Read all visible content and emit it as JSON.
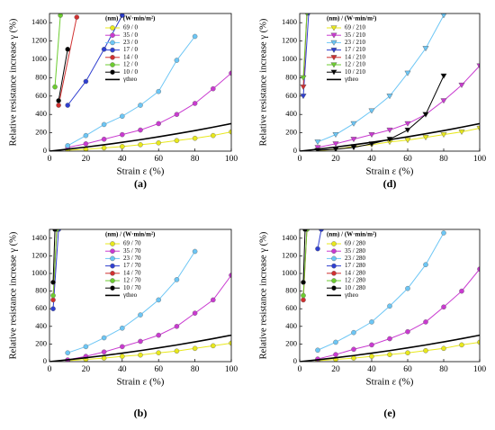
{
  "chart_data": [
    {
      "type": "line",
      "title": "(a)",
      "xlabel": "Strain ε (%)",
      "ylabel": "Relative resistance increase γ (%)",
      "legend_title": "(nm) / (W·min/m²)",
      "marker": "circle",
      "xlim": [
        0,
        100
      ],
      "ylim": [
        0,
        1500
      ],
      "xticks": [
        0,
        20,
        40,
        60,
        80,
        100
      ],
      "yticks": [
        0,
        200,
        400,
        600,
        800,
        1000,
        1200,
        1400
      ],
      "series": [
        {
          "name": "69 / 0",
          "color": "#e8e81c",
          "x": [
            10,
            20,
            30,
            40,
            50,
            60,
            70,
            80,
            90,
            100
          ],
          "values": [
            10,
            20,
            35,
            50,
            70,
            90,
            115,
            140,
            170,
            210
          ]
        },
        {
          "name": "35 / 0",
          "color": "#c93ad0",
          "x": [
            10,
            20,
            30,
            40,
            50,
            60,
            70,
            80,
            90,
            100
          ],
          "values": [
            40,
            80,
            130,
            180,
            230,
            300,
            400,
            520,
            680,
            850
          ]
        },
        {
          "name": "23 / 0",
          "color": "#6cc6f5",
          "x": [
            10,
            20,
            30,
            40,
            50,
            60,
            70,
            80
          ],
          "values": [
            60,
            170,
            290,
            380,
            500,
            650,
            990,
            1250
          ]
        },
        {
          "name": "17 / 0",
          "color": "#2f3fd0",
          "x": [
            10,
            20,
            30,
            40
          ],
          "values": [
            500,
            760,
            1110,
            1480
          ]
        },
        {
          "name": "14 / 0",
          "color": "#d03030",
          "x": [
            5,
            15
          ],
          "values": [
            500,
            1460
          ]
        },
        {
          "name": "12 / 0",
          "color": "#6ccc30",
          "x": [
            3,
            6
          ],
          "values": [
            700,
            1480
          ]
        },
        {
          "name": "10 / 0",
          "color": "#000000",
          "x": [
            5,
            10
          ],
          "values": [
            550,
            1110
          ]
        },
        {
          "name": "γtheo",
          "color": "#000000",
          "line_only": true,
          "x": [
            0,
            10,
            20,
            30,
            40,
            50,
            60,
            70,
            80,
            90,
            100
          ],
          "values": [
            0,
            21,
            44,
            69,
            96,
            125,
            156,
            189,
            224,
            261,
            300
          ]
        }
      ]
    },
    {
      "type": "line",
      "title": "(d)",
      "xlabel": "Strain ε (%)",
      "ylabel": "Relative resistance increase γ (%)",
      "legend_title": "(nm) / (W·min/m²)",
      "marker": "triangle",
      "xlim": [
        0,
        100
      ],
      "ylim": [
        0,
        1500
      ],
      "xticks": [
        0,
        20,
        40,
        60,
        80,
        100
      ],
      "yticks": [
        0,
        200,
        400,
        600,
        800,
        1000,
        1200,
        1400
      ],
      "series": [
        {
          "name": "69 / 210",
          "color": "#e8e81c",
          "x": [
            10,
            20,
            30,
            40,
            50,
            60,
            70,
            80,
            90,
            100
          ],
          "values": [
            5,
            20,
            50,
            70,
            100,
            120,
            150,
            180,
            210,
            250
          ]
        },
        {
          "name": "35 / 210",
          "color": "#c93ad0",
          "x": [
            10,
            20,
            30,
            40,
            50,
            60,
            70,
            80,
            90,
            100
          ],
          "values": [
            40,
            80,
            130,
            180,
            230,
            300,
            400,
            550,
            720,
            930
          ]
        },
        {
          "name": "23 / 210",
          "color": "#6cc6f5",
          "x": [
            10,
            20,
            30,
            40,
            50,
            60,
            70,
            80
          ],
          "values": [
            100,
            180,
            300,
            440,
            600,
            850,
            1120,
            1480
          ]
        },
        {
          "name": "17 / 210",
          "color": "#2f3fd0",
          "x": [
            2,
            5
          ],
          "values": [
            600,
            1500
          ]
        },
        {
          "name": "14 / 210",
          "color": "#d03030",
          "x": [
            2,
            4
          ],
          "values": [
            700,
            1500
          ]
        },
        {
          "name": "12 / 210",
          "color": "#6ccc30",
          "x": [
            2,
            4
          ],
          "values": [
            800,
            1500
          ]
        },
        {
          "name": "10 / 210",
          "color": "#000000",
          "x": [
            10,
            20,
            30,
            40,
            50,
            60,
            70,
            80
          ],
          "values": [
            10,
            20,
            40,
            80,
            130,
            230,
            400,
            820
          ]
        },
        {
          "name": "γtheo",
          "color": "#000000",
          "line_only": true,
          "x": [
            0,
            10,
            20,
            30,
            40,
            50,
            60,
            70,
            80,
            90,
            100
          ],
          "values": [
            0,
            21,
            44,
            69,
            96,
            125,
            156,
            189,
            224,
            261,
            300
          ]
        }
      ]
    },
    {
      "type": "line",
      "title": "(b)",
      "xlabel": "Strain ε (%)",
      "ylabel": "Relative resistance increase γ (%)",
      "legend_title": "(nm) / (W·min/m²)",
      "marker": "circle",
      "xlim": [
        0,
        100
      ],
      "ylim": [
        0,
        1500
      ],
      "xticks": [
        0,
        20,
        40,
        60,
        80,
        100
      ],
      "yticks": [
        0,
        200,
        400,
        600,
        800,
        1000,
        1200,
        1400
      ],
      "series": [
        {
          "name": "69 / 70",
          "color": "#e8e81c",
          "x": [
            10,
            20,
            30,
            40,
            50,
            60,
            70,
            80,
            90,
            100
          ],
          "values": [
            10,
            25,
            40,
            60,
            75,
            100,
            120,
            150,
            180,
            210
          ]
        },
        {
          "name": "35 / 70",
          "color": "#c93ad0",
          "x": [
            10,
            20,
            30,
            40,
            50,
            60,
            70,
            80,
            90,
            100
          ],
          "values": [
            20,
            60,
            110,
            170,
            230,
            300,
            400,
            550,
            700,
            980
          ]
        },
        {
          "name": "23 / 70",
          "color": "#6cc6f5",
          "x": [
            10,
            20,
            30,
            40,
            50,
            60,
            70,
            80
          ],
          "values": [
            100,
            170,
            270,
            380,
            530,
            700,
            930,
            1250
          ]
        },
        {
          "name": "17 / 70",
          "color": "#2f3fd0",
          "x": [
            2,
            5
          ],
          "values": [
            600,
            1500
          ]
        },
        {
          "name": "14 / 70",
          "color": "#d03030",
          "x": [
            2,
            4
          ],
          "values": [
            700,
            1500
          ]
        },
        {
          "name": "12 / 70",
          "color": "#6ccc30",
          "x": [
            2,
            4
          ],
          "values": [
            750,
            1500
          ]
        },
        {
          "name": "10 / 70",
          "color": "#000000",
          "x": [
            2,
            3
          ],
          "values": [
            900,
            1500
          ]
        },
        {
          "name": "γtheo",
          "color": "#000000",
          "line_only": true,
          "x": [
            0,
            10,
            20,
            30,
            40,
            50,
            60,
            70,
            80,
            90,
            100
          ],
          "values": [
            0,
            21,
            44,
            69,
            96,
            125,
            156,
            189,
            224,
            261,
            300
          ]
        }
      ]
    },
    {
      "type": "line",
      "title": "(e)",
      "xlabel": "Strain ε (%)",
      "ylabel": "Relative resistance increase γ (%)",
      "legend_title": "(nm) / (W·min/m²)",
      "marker": "circle",
      "xlim": [
        0,
        100
      ],
      "ylim": [
        0,
        1500
      ],
      "xticks": [
        0,
        20,
        40,
        60,
        80,
        100
      ],
      "yticks": [
        0,
        200,
        400,
        600,
        800,
        1000,
        1200,
        1400
      ],
      "series": [
        {
          "name": "69 / 280",
          "color": "#e8e81c",
          "x": [
            10,
            20,
            30,
            40,
            50,
            60,
            70,
            80,
            90,
            100
          ],
          "values": [
            10,
            25,
            40,
            60,
            80,
            100,
            125,
            150,
            190,
            220
          ]
        },
        {
          "name": "35 / 280",
          "color": "#c93ad0",
          "x": [
            10,
            20,
            30,
            40,
            50,
            60,
            70,
            80,
            90,
            100
          ],
          "values": [
            30,
            80,
            140,
            190,
            260,
            340,
            450,
            620,
            800,
            1050
          ]
        },
        {
          "name": "23 / 280",
          "color": "#6cc6f5",
          "x": [
            10,
            20,
            30,
            40,
            50,
            60,
            70,
            80
          ],
          "values": [
            130,
            220,
            330,
            450,
            630,
            830,
            1100,
            1460
          ]
        },
        {
          "name": "17 / 280",
          "color": "#2f3fd0",
          "x": [
            10,
            12
          ],
          "values": [
            1280,
            1500
          ]
        },
        {
          "name": "14 / 280",
          "color": "#d03030",
          "x": [
            2,
            4
          ],
          "values": [
            700,
            1500
          ]
        },
        {
          "name": "12 / 280",
          "color": "#6ccc30",
          "x": [
            2,
            4
          ],
          "values": [
            750,
            1500
          ]
        },
        {
          "name": "10 / 280",
          "color": "#000000",
          "x": [
            2,
            3
          ],
          "values": [
            900,
            1500
          ]
        },
        {
          "name": "γtheo",
          "color": "#000000",
          "line_only": true,
          "x": [
            0,
            10,
            20,
            30,
            40,
            50,
            60,
            70,
            80,
            90,
            100
          ],
          "values": [
            0,
            21,
            44,
            69,
            96,
            125,
            156,
            189,
            224,
            261,
            300
          ]
        }
      ]
    }
  ]
}
